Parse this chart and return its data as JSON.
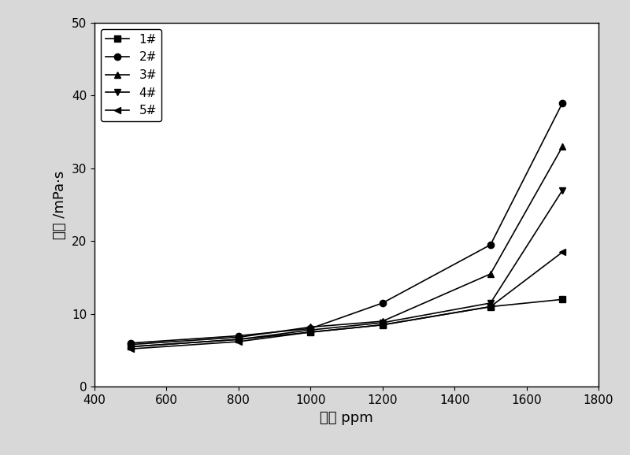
{
  "x": [
    500,
    800,
    1000,
    1200,
    1500,
    1700
  ],
  "series": [
    {
      "label": "1#",
      "y": [
        5.5,
        6.5,
        7.5,
        8.5,
        11.0,
        12.0
      ],
      "marker": "s",
      "color": "#000000"
    },
    {
      "label": "2#",
      "y": [
        6.0,
        7.0,
        8.0,
        11.5,
        19.5,
        39.0
      ],
      "marker": "o",
      "color": "#000000"
    },
    {
      "label": "3#",
      "y": [
        5.8,
        6.8,
        8.2,
        9.0,
        15.5,
        33.0
      ],
      "marker": "^",
      "color": "#000000"
    },
    {
      "label": "4#",
      "y": [
        5.5,
        6.5,
        7.8,
        8.8,
        11.5,
        27.0
      ],
      "marker": "v",
      "color": "#000000"
    },
    {
      "label": "5#",
      "y": [
        5.2,
        6.2,
        7.5,
        8.5,
        11.0,
        18.5
      ],
      "marker": "<",
      "color": "#000000"
    }
  ],
  "xlabel": "浓度 ppm",
  "ylabel": "粘度 /mPa·s",
  "xlim": [
    400,
    1800
  ],
  "ylim": [
    0,
    50
  ],
  "xticks": [
    400,
    600,
    800,
    1000,
    1200,
    1400,
    1600,
    1800
  ],
  "yticks": [
    0,
    10,
    20,
    30,
    40,
    50
  ],
  "fig_facecolor": "#d8d8d8",
  "plot_facecolor": "#ffffff",
  "legend_loc": "upper left",
  "figsize": [
    8.0,
    5.78
  ],
  "dpi": 100
}
